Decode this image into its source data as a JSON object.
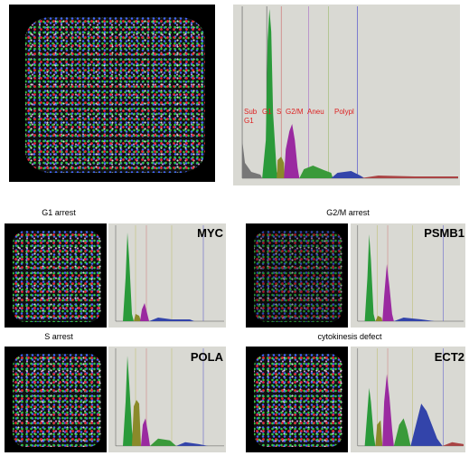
{
  "main": {
    "phase_labels": [
      "Sub",
      "G1",
      "G1",
      "S",
      "G2/M",
      "Aneu",
      "Polypl"
    ]
  },
  "panels": [
    {
      "title": "G1 arrest",
      "gene": "MYC"
    },
    {
      "title": "G2/M arrest",
      "gene": "PSMB1"
    },
    {
      "title": "S arrest",
      "gene": "POLA"
    },
    {
      "title": "cytokinesis defect",
      "gene": "ECT2"
    }
  ]
}
